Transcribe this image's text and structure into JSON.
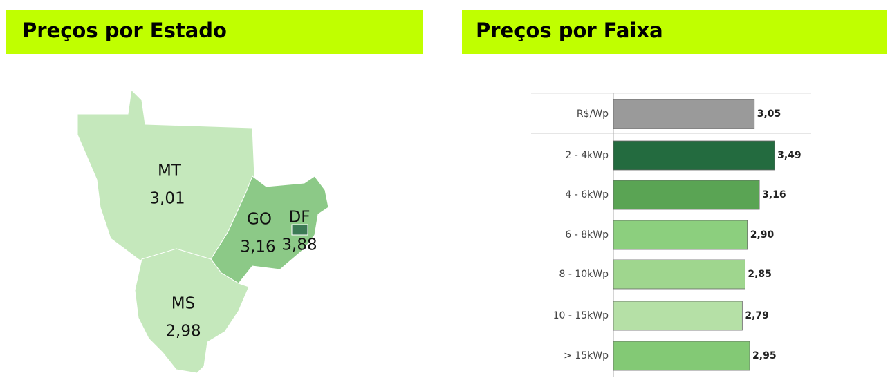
{
  "chart_data": [
    {
      "type": "choropleth",
      "title": "Preços por Estado",
      "categories": [
        "MT",
        "GO",
        "DF",
        "MS"
      ],
      "values": [
        3.01,
        3.16,
        3.88,
        2.98
      ],
      "value_labels": [
        "3,01",
        "3,16",
        "3,88",
        "2,98"
      ],
      "colors": [
        "#c5e8bc",
        "#8cc987",
        "#3c7a55",
        "#c5e8bc"
      ]
    },
    {
      "type": "bar",
      "title": "Preços por Faixa",
      "categories": [
        "R$/Wp",
        "2 - 4kWp",
        "4 - 6kWp",
        "6 - 8kWp",
        "8 - 10kWp",
        "10 - 15kWp",
        "> 15kWp"
      ],
      "values": [
        3.05,
        3.49,
        3.16,
        2.9,
        2.85,
        2.79,
        2.95
      ],
      "value_labels": [
        "3,05",
        "3,49",
        "3,16",
        "2,90",
        "2,85",
        "2,79",
        "2,95"
      ],
      "colors": [
        "#9a9a9a",
        "#236b3f",
        "#5aa454",
        "#8ccf7e",
        "#9fd68e",
        "#b5e0a6",
        "#83c975"
      ]
    }
  ]
}
